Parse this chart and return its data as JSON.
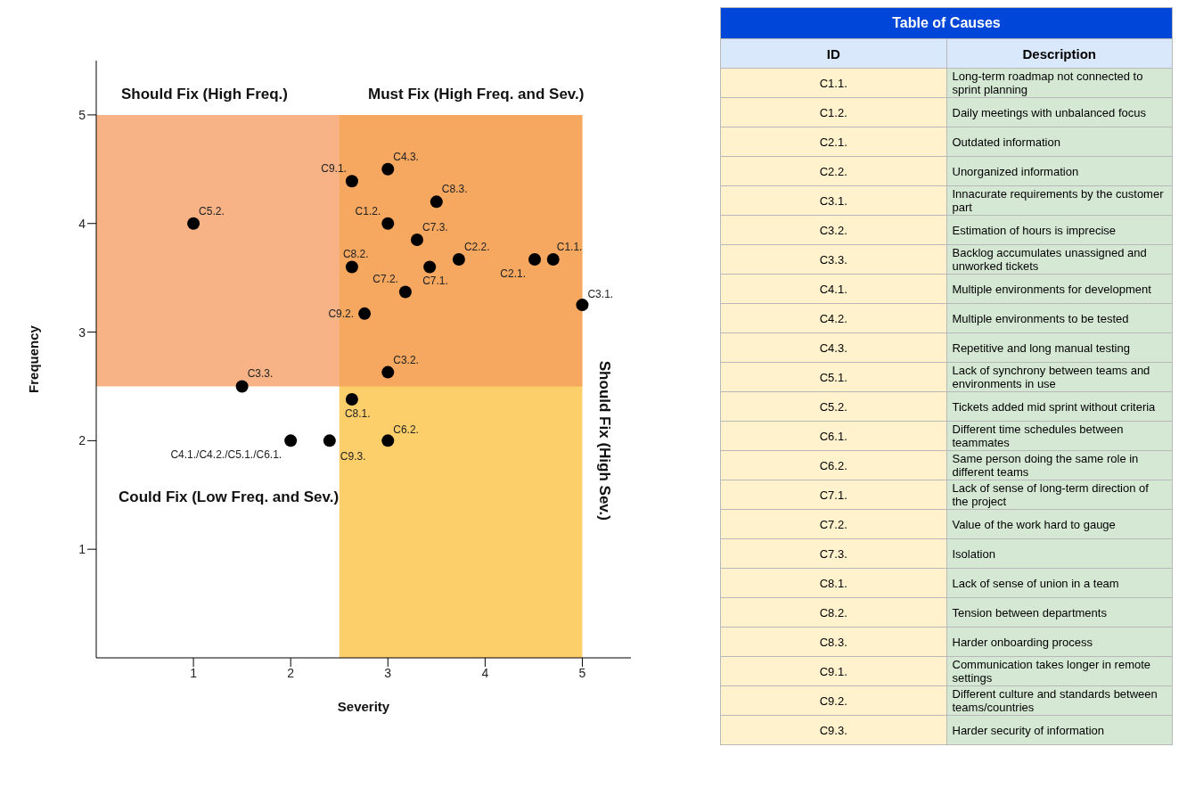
{
  "chart_data": [
    {
      "type": "scatter",
      "xlabel": "Severity",
      "ylabel": "Frequency",
      "xlim": [
        0,
        5.5
      ],
      "ylim": [
        0,
        5.5
      ],
      "xticks": [
        1,
        2,
        3,
        4,
        5
      ],
      "yticks": [
        1,
        2,
        3,
        4,
        5
      ],
      "grid": false,
      "marker": "circle",
      "color": "#000000",
      "x": [
        1,
        1.5,
        2,
        2.4,
        2.63,
        3,
        3.5,
        3,
        3.3,
        2.63,
        3.73,
        3.43,
        3.18,
        4.51,
        4.7,
        5,
        2.76,
        3,
        2.63,
        3
      ],
      "values": [
        4,
        2.5,
        2,
        2,
        4.39,
        4.5,
        4.2,
        4,
        3.85,
        3.6,
        3.67,
        3.6,
        3.37,
        3.67,
        3.67,
        3.25,
        3.17,
        2.63,
        2.38,
        2
      ],
      "bands": [
        {
          "axis": "x",
          "from": 2.5,
          "to": 5,
          "label": "Should Fix (High Sev.)",
          "color": "#fbbf3a"
        },
        {
          "axis": "y",
          "from": 2.5,
          "to": 5,
          "label": "Should Fix (High Freq.)",
          "color": "#f49a5c"
        }
      ],
      "annotations": [
        "Must Fix (High Freq. and Sev.)",
        "Could Fix (Low Freq. and Sev.)",
        {
          "text": "C5.2.",
          "x": 1,
          "y": 4
        },
        {
          "text": "C3.3.",
          "x": 1.5,
          "y": 2.5
        },
        {
          "text": "C4.1./C4.2./C5.1./C6.1.",
          "x": 2,
          "y": 2
        },
        {
          "text": "C9.3.",
          "x": 2.4,
          "y": 2
        },
        {
          "text": "C9.1.",
          "x": 2.63,
          "y": 4.39
        },
        {
          "text": "C4.3.",
          "x": 3,
          "y": 4.5
        },
        {
          "text": "C8.3.",
          "x": 3.5,
          "y": 4.2
        },
        {
          "text": "C1.2.",
          "x": 3,
          "y": 4
        },
        {
          "text": "C7.3.",
          "x": 3.3,
          "y": 3.85
        },
        {
          "text": "C8.2.",
          "x": 2.63,
          "y": 3.6
        },
        {
          "text": "C2.2.",
          "x": 3.73,
          "y": 3.67
        },
        {
          "text": "C7.1.",
          "x": 3.43,
          "y": 3.6
        },
        {
          "text": "C7.2.",
          "x": 3.18,
          "y": 3.37
        },
        {
          "text": "C2.1.",
          "x": 4.51,
          "y": 3.67
        },
        {
          "text": "C1.1.",
          "x": 4.7,
          "y": 3.67
        },
        {
          "text": "C3.1.",
          "x": 5,
          "y": 3.25
        },
        {
          "text": "C9.2.",
          "x": 2.76,
          "y": 3.17
        },
        {
          "text": "C3.2.",
          "x": 3,
          "y": 2.63
        },
        {
          "text": "C8.1.",
          "x": 2.63,
          "y": 2.38
        },
        {
          "text": "C6.2.",
          "x": 3,
          "y": 2
        }
      ]
    },
    {
      "type": "other",
      "title": "Table of Causes",
      "annotations": [
        "ID",
        "Description",
        "C1.1.",
        "Long-term roadmap not connected to sprint planning",
        "C1.2.",
        "Daily meetings with unbalanced focus",
        "C2.1.",
        "Outdated information",
        "C2.2.",
        "Unorganized information",
        "C3.1.",
        "Innacurate requirements by the customer part",
        "C3.2.",
        "Estimation of hours is imprecise",
        "C3.3.",
        "Backlog accumulates unassigned and unworked tickets",
        "C4.1.",
        "Multiple environments for development",
        "C4.2.",
        "Multiple environments to be tested",
        "C4.3.",
        "Repetitive and long manual testing",
        "C5.1.",
        "Lack of synchrony between teams and environments in use",
        "C5.2.",
        "Tickets added mid sprint without criteria",
        "C6.1.",
        "Different time schedules between teammates",
        "C6.2.",
        "Same person doing the same role in different teams",
        "C7.1.",
        "Lack of sense of long-term direction of the project",
        "C7.2.",
        "Value of the work hard to gauge",
        "C7.3.",
        "Isolation",
        "C8.1.",
        "Lack of sense of union in a team",
        "C8.2.",
        "Tension between departments",
        "C8.3.",
        "Harder onboarding process",
        "C9.1.",
        "Communication takes longer in remote settings",
        "C9.2.",
        "Different culture and standards between teams/countries",
        "C9.3.",
        "Harder security of information"
      ]
    }
  ]
}
